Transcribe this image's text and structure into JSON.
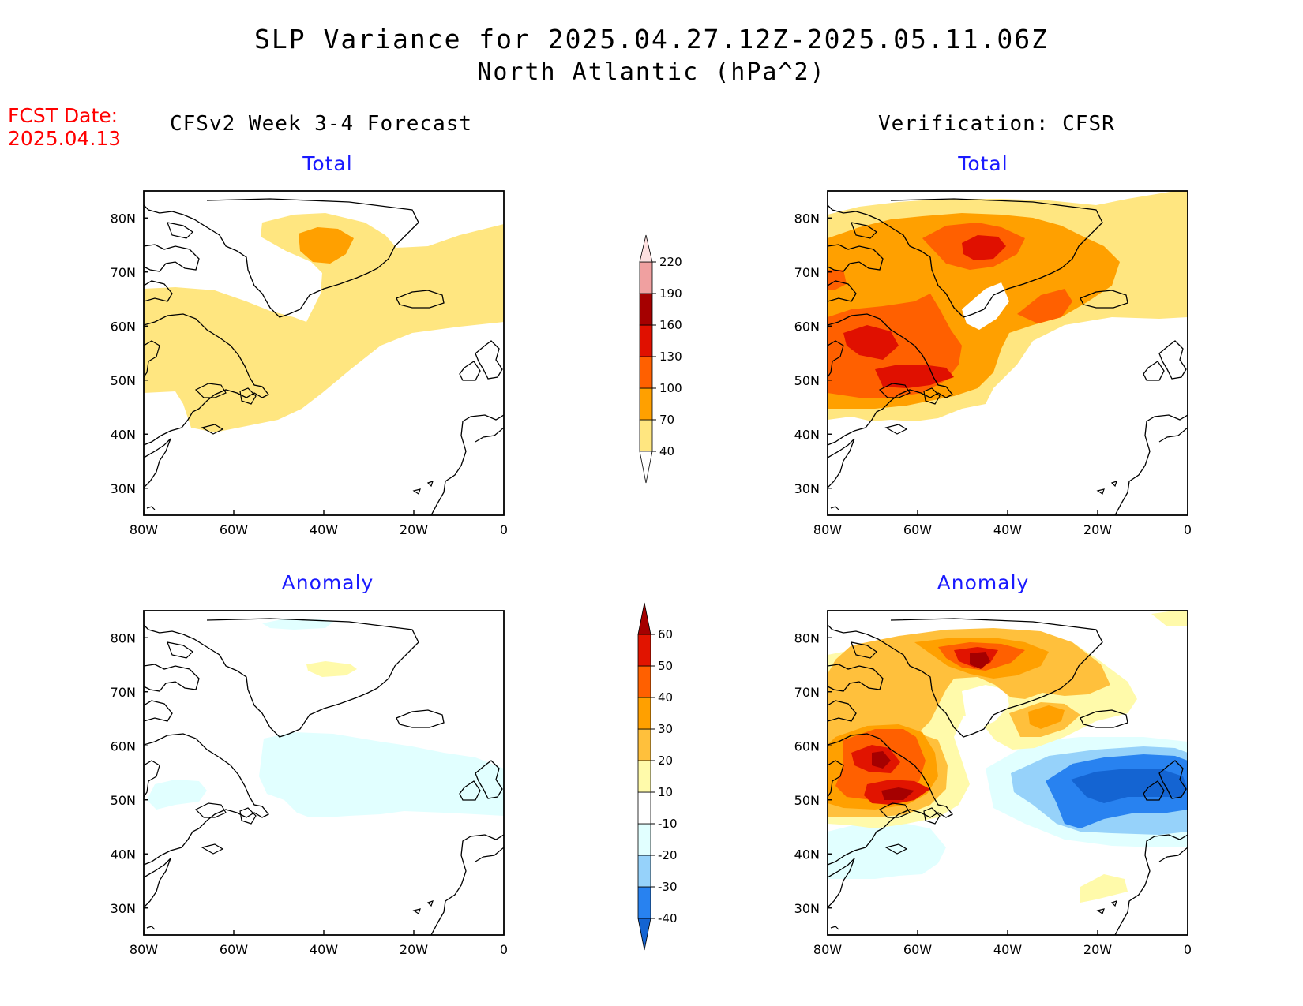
{
  "title": "SLP Variance for 2025.04.27.12Z-2025.05.11.06Z",
  "subtitle": "North Atlantic (hPa^2)",
  "fcst_date": {
    "label": "FCST Date:",
    "value": "2025.04.13"
  },
  "columns": {
    "left": "CFSv2 Week 3-4 Forecast",
    "right": "Verification: CFSR"
  },
  "panel_titles": {
    "total": "Total",
    "anomaly": "Anomaly"
  },
  "axes": {
    "lat_ticks": [
      "80N",
      "70N",
      "60N",
      "50N",
      "40N",
      "30N"
    ],
    "lon_ticks": [
      "80W",
      "60W",
      "40W",
      "20W",
      "0"
    ],
    "lat_range": [
      25,
      85
    ],
    "lon_range": [
      -80,
      0
    ]
  },
  "colorbar_total": {
    "labels": [
      "40",
      "70",
      "100",
      "130",
      "160",
      "190",
      "220"
    ],
    "colors": [
      "#ffe680",
      "#ffa000",
      "#ff6000",
      "#e01000",
      "#a50000",
      "#f0a0a0",
      "#fde0e0"
    ]
  },
  "colorbar_anomaly": {
    "labels": [
      "-40",
      "-30",
      "-20",
      "-10",
      "10",
      "20",
      "30",
      "40",
      "50",
      "60"
    ],
    "colors": [
      "#1464d2",
      "#2882f0",
      "#96d2fa",
      "#e1ffff",
      "#ffffff",
      "#fffaaa",
      "#ffc03c",
      "#ffa000",
      "#ff6000",
      "#e11400",
      "#a50000"
    ]
  },
  "colors": {
    "title_red": "#ff0000",
    "subtitle_blue": "#1a1aff"
  }
}
